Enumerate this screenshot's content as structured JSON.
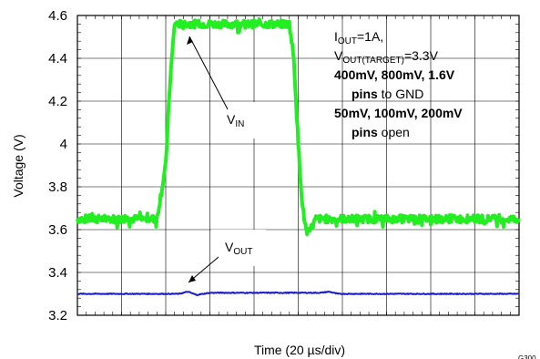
{
  "chart_data": {
    "type": "line",
    "xlabel": "Time (20 µs/div)",
    "ylabel": "Voltage (V)",
    "ylim": [
      3.2,
      4.6
    ],
    "y_ticks": [
      "3.2",
      "3.4",
      "3.6",
      "3.8",
      "4",
      "4.2",
      "4.4",
      "4.6"
    ],
    "x_divisions": 10,
    "grid": true,
    "figure_id": "G300",
    "series": [
      {
        "name": "VIN",
        "color": "#22ee22",
        "x_div": [
          0,
          1.8,
          2.0,
          2.1,
          2.2,
          4.8,
          4.9,
          5.0,
          5.1,
          5.2,
          5.4,
          10
        ],
        "values": [
          3.65,
          3.65,
          3.9,
          4.3,
          4.56,
          4.56,
          4.4,
          4.0,
          3.7,
          3.57,
          3.65,
          3.65
        ]
      },
      {
        "name": "VOUT",
        "color": "#1a1acc",
        "x_div": [
          0,
          2.3,
          2.5,
          2.7,
          3.0,
          5.5,
          5.7,
          5.9,
          6.2,
          10
        ],
        "values": [
          3.3,
          3.3,
          3.31,
          3.295,
          3.305,
          3.305,
          3.31,
          3.3,
          3.3,
          3.3
        ]
      }
    ],
    "annotations": {
      "vin_label": "V",
      "vin_sub": "IN",
      "vout_label": "V",
      "vout_sub": "OUT",
      "cond_iout_main": "I",
      "cond_iout_sub": "OUT",
      "cond_iout_value": "=1A,",
      "cond_vout_main": "V",
      "cond_vout_sub": "OUT(TARGET)",
      "cond_vout_value": "=3.3V",
      "pins_gnd_values": "400mV, 800mV, 1.6V",
      "pins_gnd_bold": "pins",
      "pins_gnd_rest": " to GND",
      "pins_open_values": "50mV, 100mV, 200mV",
      "pins_open_bold": "pins",
      "pins_open_rest": " open"
    }
  }
}
